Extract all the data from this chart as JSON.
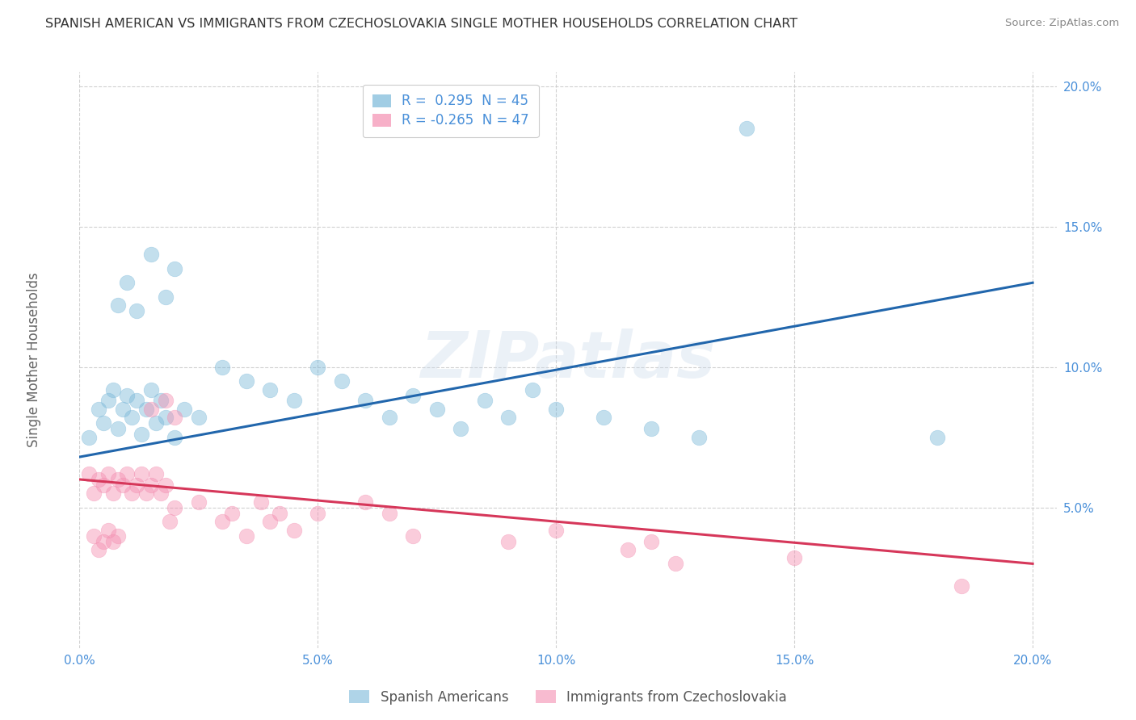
{
  "title": "SPANISH AMERICAN VS IMMIGRANTS FROM CZECHOSLOVAKIA SINGLE MOTHER HOUSEHOLDS CORRELATION CHART",
  "source": "Source: ZipAtlas.com",
  "ylabel": "Single Mother Households",
  "watermark": "ZIPatlas",
  "legend_entries": [
    {
      "label": "R =  0.295  N = 45",
      "color": "#aac4e8"
    },
    {
      "label": "R = -0.265  N = 47",
      "color": "#f4a7b9"
    }
  ],
  "legend_series": [
    "Spanish Americans",
    "Immigrants from Czechoslovakia"
  ],
  "xlim": [
    0.0,
    0.205
  ],
  "ylim": [
    0.0,
    0.205
  ],
  "yticks": [
    0.05,
    0.1,
    0.15,
    0.2
  ],
  "xticks": [
    0.0,
    0.05,
    0.1,
    0.15,
    0.2
  ],
  "blue_scatter": [
    [
      0.002,
      0.075
    ],
    [
      0.004,
      0.085
    ],
    [
      0.005,
      0.08
    ],
    [
      0.006,
      0.088
    ],
    [
      0.007,
      0.092
    ],
    [
      0.008,
      0.078
    ],
    [
      0.009,
      0.085
    ],
    [
      0.01,
      0.09
    ],
    [
      0.011,
      0.082
    ],
    [
      0.012,
      0.088
    ],
    [
      0.013,
      0.076
    ],
    [
      0.014,
      0.085
    ],
    [
      0.015,
      0.092
    ],
    [
      0.016,
      0.08
    ],
    [
      0.017,
      0.088
    ],
    [
      0.018,
      0.082
    ],
    [
      0.02,
      0.075
    ],
    [
      0.022,
      0.085
    ],
    [
      0.025,
      0.082
    ],
    [
      0.01,
      0.13
    ],
    [
      0.012,
      0.12
    ],
    [
      0.015,
      0.14
    ],
    [
      0.018,
      0.125
    ],
    [
      0.02,
      0.135
    ],
    [
      0.008,
      0.122
    ],
    [
      0.03,
      0.1
    ],
    [
      0.035,
      0.095
    ],
    [
      0.04,
      0.092
    ],
    [
      0.045,
      0.088
    ],
    [
      0.05,
      0.1
    ],
    [
      0.055,
      0.095
    ],
    [
      0.06,
      0.088
    ],
    [
      0.065,
      0.082
    ],
    [
      0.07,
      0.09
    ],
    [
      0.075,
      0.085
    ],
    [
      0.08,
      0.078
    ],
    [
      0.085,
      0.088
    ],
    [
      0.09,
      0.082
    ],
    [
      0.095,
      0.092
    ],
    [
      0.1,
      0.085
    ],
    [
      0.11,
      0.082
    ],
    [
      0.12,
      0.078
    ],
    [
      0.13,
      0.075
    ],
    [
      0.14,
      0.185
    ],
    [
      0.18,
      0.075
    ]
  ],
  "pink_scatter": [
    [
      0.002,
      0.062
    ],
    [
      0.003,
      0.055
    ],
    [
      0.004,
      0.06
    ],
    [
      0.005,
      0.058
    ],
    [
      0.006,
      0.062
    ],
    [
      0.007,
      0.055
    ],
    [
      0.008,
      0.06
    ],
    [
      0.009,
      0.058
    ],
    [
      0.01,
      0.062
    ],
    [
      0.011,
      0.055
    ],
    [
      0.012,
      0.058
    ],
    [
      0.013,
      0.062
    ],
    [
      0.014,
      0.055
    ],
    [
      0.015,
      0.058
    ],
    [
      0.016,
      0.062
    ],
    [
      0.017,
      0.055
    ],
    [
      0.018,
      0.058
    ],
    [
      0.019,
      0.045
    ],
    [
      0.02,
      0.05
    ],
    [
      0.003,
      0.04
    ],
    [
      0.004,
      0.035
    ],
    [
      0.005,
      0.038
    ],
    [
      0.006,
      0.042
    ],
    [
      0.007,
      0.038
    ],
    [
      0.008,
      0.04
    ],
    [
      0.025,
      0.052
    ],
    [
      0.03,
      0.045
    ],
    [
      0.032,
      0.048
    ],
    [
      0.035,
      0.04
    ],
    [
      0.038,
      0.052
    ],
    [
      0.04,
      0.045
    ],
    [
      0.042,
      0.048
    ],
    [
      0.045,
      0.042
    ],
    [
      0.05,
      0.048
    ],
    [
      0.015,
      0.085
    ],
    [
      0.018,
      0.088
    ],
    [
      0.02,
      0.082
    ],
    [
      0.06,
      0.052
    ],
    [
      0.065,
      0.048
    ],
    [
      0.07,
      0.04
    ],
    [
      0.09,
      0.038
    ],
    [
      0.1,
      0.042
    ],
    [
      0.115,
      0.035
    ],
    [
      0.12,
      0.038
    ],
    [
      0.125,
      0.03
    ],
    [
      0.15,
      0.032
    ],
    [
      0.185,
      0.022
    ]
  ],
  "blue_color": "#7ab8d9",
  "pink_color": "#f48fb1",
  "blue_line_color": "#2166ac",
  "pink_line_color": "#d6375a",
  "background_color": "#ffffff",
  "grid_color": "#cccccc",
  "title_color": "#333333",
  "source_color": "#888888",
  "tick_color": "#4a90d9"
}
